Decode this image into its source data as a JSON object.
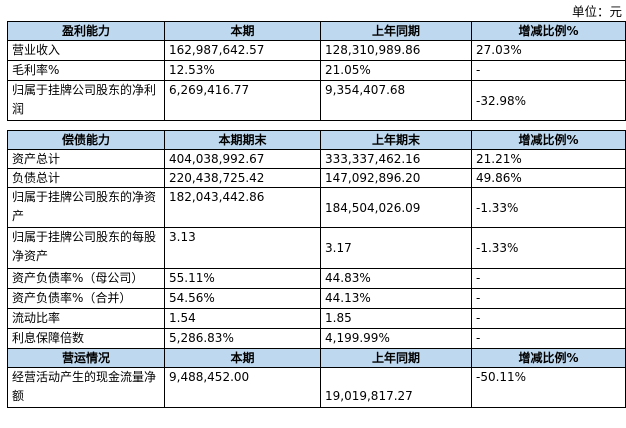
{
  "unit_label": "单位：元",
  "profitability": {
    "header": [
      "盈利能力",
      "本期",
      "上年同期",
      "增减比例%"
    ],
    "rows": [
      {
        "label": "营业收入",
        "current": "162,987,642.57",
        "previous": "128,310,989.86",
        "change": "27.03%"
      },
      {
        "label": "毛利率%",
        "current": "12.53%",
        "previous": "21.05%",
        "change": "-"
      },
      {
        "label": "归属于挂牌公司股东的净利润",
        "current": "6,269,416.77",
        "previous": "9,354,407.68",
        "change": "-32.98%"
      }
    ]
  },
  "solvency": {
    "header": [
      "偿债能力",
      "本期期末",
      "上年期末",
      "增减比例%"
    ],
    "rows": [
      {
        "label": "资产总计",
        "current": "404,038,992.67",
        "previous": "333,337,462.16",
        "change": "21.21%"
      },
      {
        "label": "负债总计",
        "current": "220,438,725.42",
        "previous": "147,092,896.20",
        "change": "49.86%"
      },
      {
        "label": "归属于挂牌公司股东的净资产",
        "current": "182,043,442.86",
        "previous": "184,504,026.09",
        "change": "-1.33%"
      },
      {
        "label": "归属于挂牌公司股东的每股净资产",
        "current": "3.13",
        "previous": "3.17",
        "change": "-1.33%"
      },
      {
        "label": "资产负债率%（母公司）",
        "current": "55.11%",
        "previous": "44.83%",
        "change": "-"
      },
      {
        "label": "资产负债率%（合并）",
        "current": "54.56%",
        "previous": "44.13%",
        "change": "-"
      },
      {
        "label": "流动比率",
        "current": "1.54",
        "previous": "1.85",
        "change": "-"
      },
      {
        "label": "利息保障倍数",
        "current": "5,286.83%",
        "previous": "4,199.99%",
        "change": "-"
      }
    ]
  },
  "operations": {
    "header": [
      "营运情况",
      "本期",
      "上年同期",
      "增减比例%"
    ],
    "rows": [
      {
        "label": "经营活动产生的现金流量净额",
        "current": "9,488,452.00",
        "previous": "19,019,817.27",
        "change": "-50.11%"
      }
    ]
  }
}
